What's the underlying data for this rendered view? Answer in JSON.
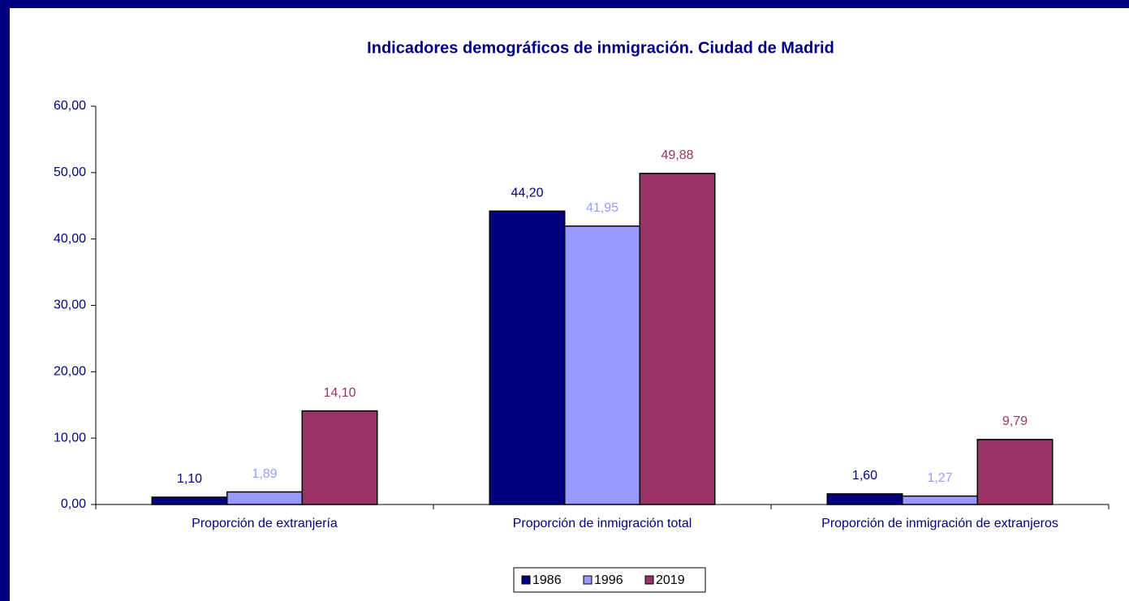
{
  "chart_data": {
    "type": "bar",
    "title": "Indicadores demográficos de inmigración. Ciudad de Madrid",
    "categories": [
      "Proporción de extranjería",
      "Proporción de inmigración total",
      "Proporción de inmigración de extranjeros"
    ],
    "series": [
      {
        "name": "1986",
        "color": "#000080",
        "values": [
          1.1,
          44.2,
          1.6
        ],
        "value_labels": [
          "1,10",
          "44,20",
          "1,60"
        ]
      },
      {
        "name": "1996",
        "color": "#9999ff",
        "values": [
          1.89,
          41.95,
          1.27
        ],
        "value_labels": [
          "1,89",
          "41,95",
          "1,27"
        ]
      },
      {
        "name": "2019",
        "color": "#993366",
        "values": [
          14.1,
          49.88,
          9.79
        ],
        "value_labels": [
          "14,10",
          "49,88",
          "9,79"
        ]
      }
    ],
    "ylim": [
      0,
      60
    ],
    "yticks": [
      {
        "value": 0,
        "label": "0,00"
      },
      {
        "value": 10,
        "label": "10,00"
      },
      {
        "value": 20,
        "label": "20,00"
      },
      {
        "value": 30,
        "label": "30,00"
      },
      {
        "value": 40,
        "label": "40,00"
      },
      {
        "value": 50,
        "label": "50,00"
      },
      {
        "value": 60,
        "label": "60,00"
      }
    ],
    "legend": "bottom"
  }
}
